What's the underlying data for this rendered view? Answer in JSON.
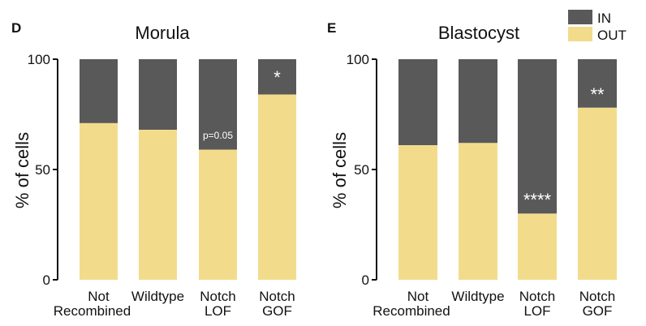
{
  "colors": {
    "in": "#595959",
    "out": "#f2dc8c",
    "axis": "#111111"
  },
  "legend": [
    {
      "key": "in",
      "label": "IN"
    },
    {
      "key": "out",
      "label": "OUT"
    }
  ],
  "chart_data": [
    {
      "type": "bar",
      "stacked": true,
      "panel": "D",
      "title": "Morula",
      "ylabel": "% of cells",
      "xlabel": "",
      "ylim": [
        0,
        100
      ],
      "yticks": [
        0,
        50,
        100
      ],
      "categories": [
        [
          "Not",
          "Recombined"
        ],
        [
          "Wildtype"
        ],
        [
          "Notch",
          "LOF"
        ],
        [
          "Notch",
          "GOF"
        ]
      ],
      "series": [
        {
          "name": "OUT",
          "values": [
            71,
            68,
            59,
            84
          ]
        },
        {
          "name": "IN",
          "values": [
            29,
            32,
            41,
            16
          ]
        }
      ],
      "annotations": [
        "",
        "",
        "p=0.05",
        "*"
      ]
    },
    {
      "type": "bar",
      "stacked": true,
      "panel": "E",
      "title": "Blastocyst",
      "ylabel": "% of cells",
      "xlabel": "",
      "ylim": [
        0,
        100
      ],
      "yticks": [
        0,
        50,
        100
      ],
      "categories": [
        [
          "Not",
          "Recombined"
        ],
        [
          "Wildtype"
        ],
        [
          "Notch",
          "LOF"
        ],
        [
          "Notch",
          "GOF"
        ]
      ],
      "series": [
        {
          "name": "OUT",
          "values": [
            61,
            62,
            30,
            78
          ]
        },
        {
          "name": "IN",
          "values": [
            39,
            38,
            70,
            22
          ]
        }
      ],
      "annotations": [
        "",
        "",
        "****",
        "**"
      ]
    }
  ]
}
